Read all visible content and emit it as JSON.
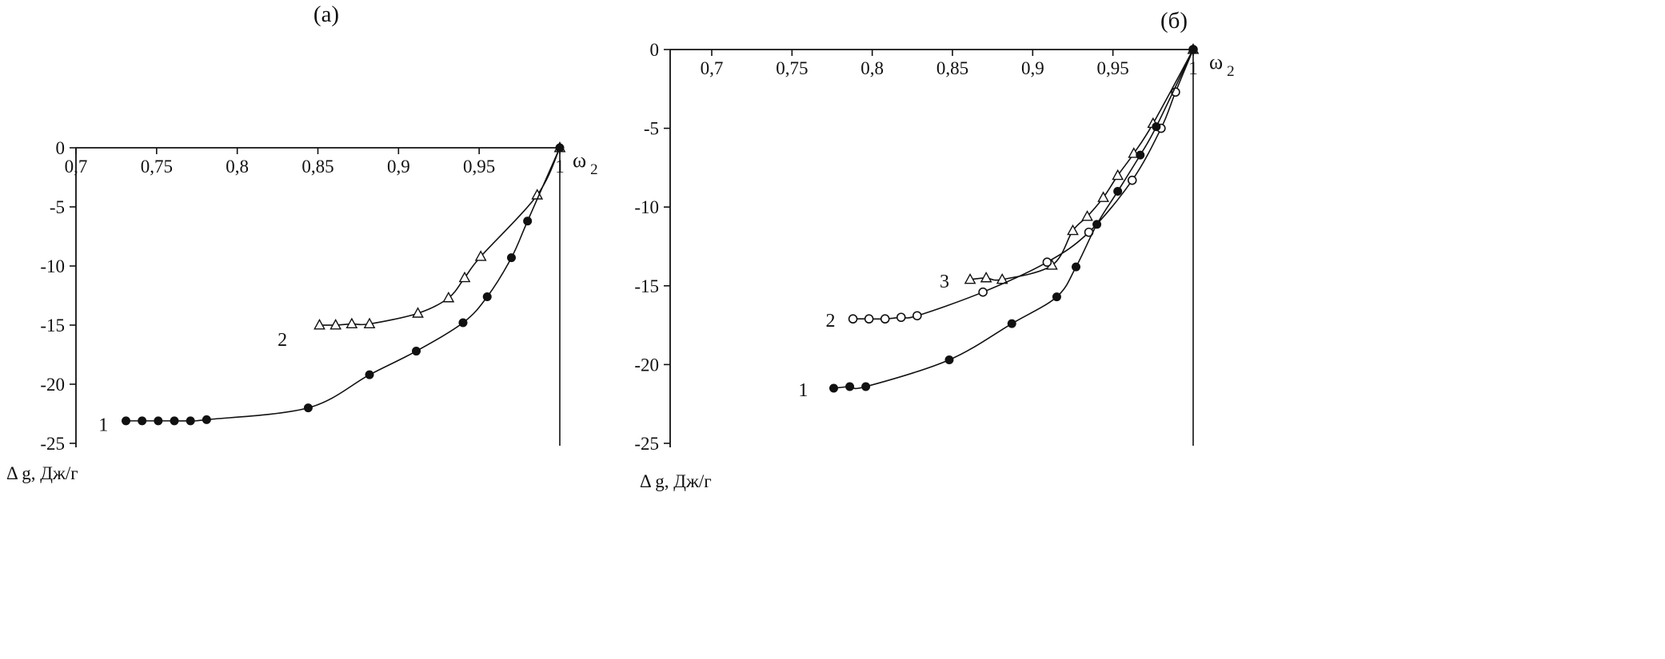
{
  "page": {
    "background": "#ffffff",
    "ink_color": "#111111"
  },
  "chart_data": [
    {
      "type": "scatter",
      "panel": "a",
      "title": "(а)",
      "xlabel": "ω",
      "xlabel_subscript": "2",
      "ylabel": "Δ g, Дж/г",
      "xlim": [
        0.7,
        1.0
      ],
      "ylim": [
        -25,
        0
      ],
      "grid": false,
      "legend": "inline-numeric-labels",
      "x_ticks": [
        {
          "value": 0.7,
          "label": "0,7"
        },
        {
          "value": 0.75,
          "label": "0,75"
        },
        {
          "value": 0.8,
          "label": "0,8"
        },
        {
          "value": 0.85,
          "label": "0,85"
        },
        {
          "value": 0.9,
          "label": "0,9"
        },
        {
          "value": 0.95,
          "label": "0,95"
        },
        {
          "value": 1,
          "label": "1"
        }
      ],
      "y_ticks": [
        {
          "value": 0,
          "label": "0"
        },
        {
          "value": -5,
          "label": "-5"
        },
        {
          "value": -10,
          "label": "-10"
        },
        {
          "value": -15,
          "label": "-15"
        },
        {
          "value": -20,
          "label": "-20"
        },
        {
          "value": -25,
          "label": "-25"
        }
      ],
      "series": [
        {
          "name": "1",
          "marker": "filled-circle",
          "label_pos": {
            "x": 0.717,
            "y": -23.4
          },
          "points": [
            [
              0.731,
              -23.1
            ],
            [
              0.741,
              -23.1
            ],
            [
              0.751,
              -23.1
            ],
            [
              0.761,
              -23.1
            ],
            [
              0.771,
              -23.1
            ],
            [
              0.781,
              -23.0
            ],
            [
              0.844,
              -22.0
            ],
            [
              0.882,
              -19.2
            ],
            [
              0.911,
              -17.2
            ],
            [
              0.94,
              -14.8
            ],
            [
              0.955,
              -12.6
            ],
            [
              0.97,
              -9.3
            ],
            [
              0.98,
              -6.2
            ],
            [
              1.0,
              0
            ]
          ]
        },
        {
          "name": "2",
          "marker": "open-triangle",
          "label_pos": {
            "x": 0.828,
            "y": -16.2
          },
          "points": [
            [
              0.851,
              -15.0
            ],
            [
              0.861,
              -15.0
            ],
            [
              0.871,
              -14.9
            ],
            [
              0.882,
              -14.9
            ],
            [
              0.912,
              -14.0
            ],
            [
              0.931,
              -12.7
            ],
            [
              0.941,
              -11.0
            ],
            [
              0.951,
              -9.2
            ],
            [
              0.986,
              -4.0
            ],
            [
              1.0,
              0
            ]
          ]
        }
      ]
    },
    {
      "type": "scatter",
      "panel": "б",
      "title": "(б)",
      "xlabel": "ω",
      "xlabel_subscript": "2",
      "ylabel": "Δ g, Дж/г",
      "xlim": [
        0.7,
        1.0
      ],
      "ylim": [
        -25,
        0
      ],
      "grid": false,
      "legend": "inline-numeric-labels",
      "x_ticks": [
        {
          "value": 0.7,
          "label": "0,7"
        },
        {
          "value": 0.75,
          "label": "0,75"
        },
        {
          "value": 0.8,
          "label": "0,8"
        },
        {
          "value": 0.85,
          "label": "0,85"
        },
        {
          "value": 0.9,
          "label": "0,9"
        },
        {
          "value": 0.95,
          "label": "0,95"
        },
        {
          "value": 1,
          "label": "1"
        }
      ],
      "y_ticks": [
        {
          "value": 0,
          "label": "0"
        },
        {
          "value": -5,
          "label": "-5"
        },
        {
          "value": -10,
          "label": "-10"
        },
        {
          "value": -15,
          "label": "-15"
        },
        {
          "value": -20,
          "label": "-20"
        },
        {
          "value": -25,
          "label": "-25"
        }
      ],
      "series": [
        {
          "name": "1",
          "marker": "filled-circle",
          "label_pos": {
            "x": 0.757,
            "y": -21.6
          },
          "points": [
            [
              0.776,
              -21.5
            ],
            [
              0.786,
              -21.4
            ],
            [
              0.796,
              -21.4
            ],
            [
              0.848,
              -19.7
            ],
            [
              0.887,
              -17.4
            ],
            [
              0.915,
              -15.7
            ],
            [
              0.927,
              -13.8
            ],
            [
              0.94,
              -11.1
            ],
            [
              0.953,
              -9.0
            ],
            [
              0.967,
              -6.7
            ],
            [
              0.977,
              -4.9
            ],
            [
              1.0,
              0
            ]
          ]
        },
        {
          "name": "2",
          "marker": "open-circle",
          "label_pos": {
            "x": 0.774,
            "y": -17.2
          },
          "points": [
            [
              0.788,
              -17.1
            ],
            [
              0.798,
              -17.1
            ],
            [
              0.808,
              -17.1
            ],
            [
              0.818,
              -17.0
            ],
            [
              0.828,
              -16.9
            ],
            [
              0.869,
              -15.4
            ],
            [
              0.909,
              -13.5
            ],
            [
              0.935,
              -11.6
            ],
            [
              0.962,
              -8.3
            ],
            [
              0.98,
              -5.0
            ],
            [
              0.989,
              -2.7
            ],
            [
              1.0,
              0
            ]
          ]
        },
        {
          "name": "3",
          "marker": "open-triangle",
          "label_pos": {
            "x": 0.845,
            "y": -14.7
          },
          "points": [
            [
              0.861,
              -14.6
            ],
            [
              0.871,
              -14.5
            ],
            [
              0.881,
              -14.6
            ],
            [
              0.912,
              -13.7
            ],
            [
              0.925,
              -11.5
            ],
            [
              0.934,
              -10.6
            ],
            [
              0.944,
              -9.4
            ],
            [
              0.953,
              -8.0
            ],
            [
              0.963,
              -6.6
            ],
            [
              0.975,
              -4.7
            ],
            [
              1.0,
              0
            ]
          ]
        }
      ]
    }
  ]
}
